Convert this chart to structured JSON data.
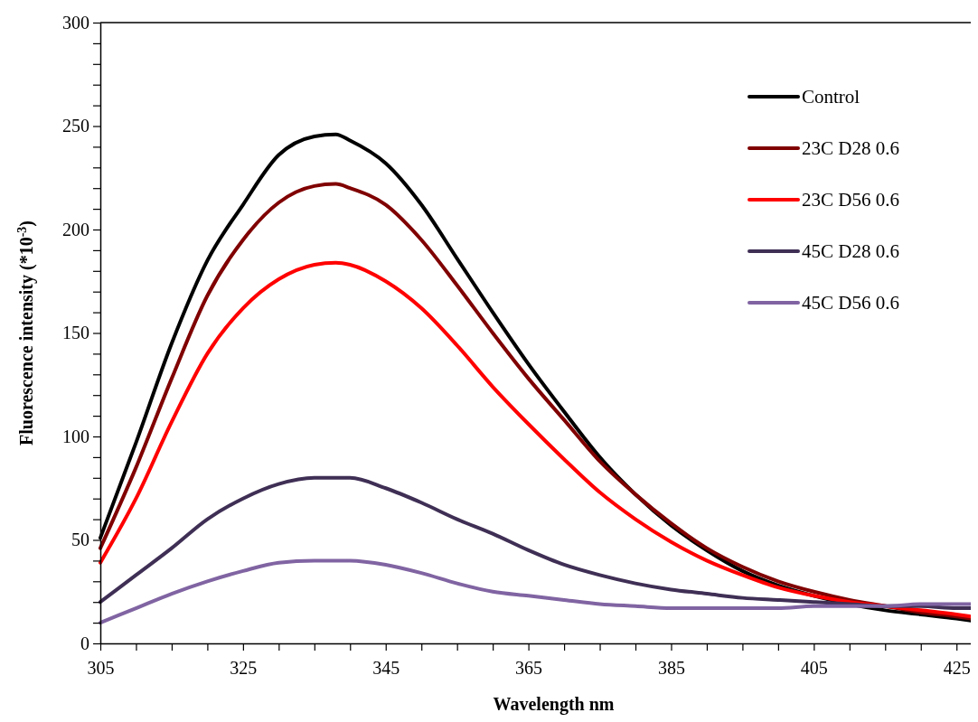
{
  "chart_data": {
    "type": "line",
    "xlabel": "Wavelength nm",
    "ylabel": "Fluorescence intensity (*10$^{-3}$)",
    "x": [
      305,
      310,
      315,
      320,
      325,
      330,
      335,
      338,
      340,
      345,
      350,
      355,
      360,
      365,
      370,
      375,
      380,
      385,
      390,
      395,
      400,
      405,
      410,
      415,
      420,
      425,
      427
    ],
    "series": [
      {
        "name": "Control",
        "color": "#000000",
        "values": [
          51,
          97,
          145,
          185,
          212,
          236,
          245,
          246,
          243,
          232,
          212,
          186,
          160,
          135,
          112,
          90,
          72,
          57,
          45,
          35,
          28,
          23,
          19,
          16,
          14,
          12,
          11
        ]
      },
      {
        "name": "23C D28 0.6",
        "color": "#800000",
        "values": [
          46,
          85,
          128,
          168,
          195,
          213,
          221,
          222,
          220,
          212,
          195,
          173,
          150,
          128,
          108,
          88,
          72,
          58,
          46,
          37,
          30,
          25,
          21,
          18,
          15,
          13,
          12
        ]
      },
      {
        "name": "23C D56 0.6",
        "color": "#ff0000",
        "values": [
          39,
          70,
          107,
          140,
          162,
          176,
          183,
          184,
          183,
          175,
          162,
          144,
          124,
          106,
          89,
          73,
          60,
          49,
          40,
          33,
          27,
          23,
          20,
          18,
          16,
          14,
          13
        ]
      },
      {
        "name": "45C D28 0.6",
        "color": "#3f2f55",
        "values": [
          20,
          33,
          46,
          60,
          70,
          77,
          80,
          80,
          80,
          75,
          68,
          60,
          53,
          45,
          38,
          33,
          29,
          26,
          24,
          22,
          21,
          20,
          19,
          18,
          18,
          17,
          17
        ]
      },
      {
        "name": "45C D56 0.6",
        "color": "#8064a2",
        "values": [
          10,
          17,
          24,
          30,
          35,
          39,
          40,
          40,
          40,
          38,
          34,
          29,
          25,
          23,
          21,
          19,
          18,
          17,
          17,
          17,
          17,
          18,
          18,
          18,
          19,
          19,
          19
        ]
      }
    ],
    "xlim": [
      305,
      427
    ],
    "xticks": [
      305,
      {
        "value": 310,
        "label": null
      },
      {
        "value": 315,
        "label": null
      },
      {
        "value": 320,
        "label": null
      },
      325,
      {
        "value": 330,
        "label": null
      },
      {
        "value": 335,
        "label": null
      },
      {
        "value": 340,
        "label": null
      },
      345,
      {
        "value": 350,
        "label": null
      },
      {
        "value": 355,
        "label": null
      },
      {
        "value": 360,
        "label": null
      },
      365,
      {
        "value": 370,
        "label": null
      },
      {
        "value": 375,
        "label": null
      },
      {
        "value": 380,
        "label": null
      },
      385,
      {
        "value": 390,
        "label": null
      },
      {
        "value": 395,
        "label": null
      },
      {
        "value": 400,
        "label": null
      },
      405,
      {
        "value": 410,
        "label": null
      },
      {
        "value": 415,
        "label": null
      },
      {
        "value": 420,
        "label": null
      },
      425
    ],
    "ylim": [
      0,
      300
    ],
    "yticks": [
      0,
      {
        "value": 10,
        "label": null
      },
      {
        "value": 20,
        "label": null
      },
      {
        "value": 30,
        "label": null
      },
      {
        "value": 40,
        "label": null
      },
      50,
      {
        "value": 60,
        "label": null
      },
      {
        "value": 70,
        "label": null
      },
      {
        "value": 80,
        "label": null
      },
      {
        "value": 90,
        "label": null
      },
      100,
      {
        "value": 110,
        "label": null
      },
      {
        "value": 120,
        "label": null
      },
      {
        "value": 130,
        "label": null
      },
      {
        "value": 140,
        "label": null
      },
      150,
      {
        "value": 160,
        "label": null
      },
      {
        "value": 170,
        "label": null
      },
      {
        "value": 180,
        "label": null
      },
      {
        "value": 190,
        "label": null
      },
      200,
      {
        "value": 210,
        "label": null
      },
      {
        "value": 220,
        "label": null
      },
      {
        "value": 230,
        "label": null
      },
      {
        "value": 240,
        "label": null
      },
      250,
      {
        "value": 260,
        "label": null
      },
      {
        "value": 270,
        "label": null
      },
      {
        "value": 280,
        "label": null
      },
      {
        "value": 290,
        "label": null
      },
      300
    ],
    "legend": "top right",
    "line_style": "solid",
    "marker": "none",
    "grid": false
  }
}
